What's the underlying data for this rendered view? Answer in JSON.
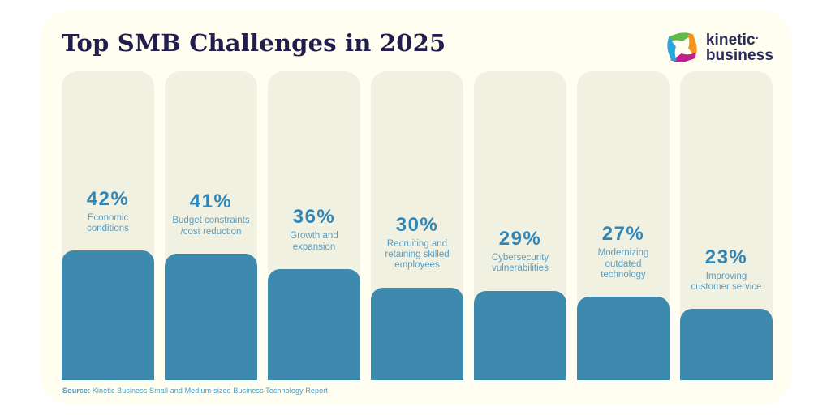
{
  "card": {
    "title": "Top SMB Challenges in 2025",
    "logo": {
      "line1": "kinetic",
      "mark": ".",
      "line2": "business"
    },
    "source": {
      "label": "Source:",
      "text": " Kinetic Business Small and Medium-sized Business Technology Report"
    }
  },
  "colors": {
    "card_bg": "#FFFEF0",
    "track_bg": "#F1F1E2",
    "bar": "#3E8AAE",
    "pct": "#3286B6",
    "label": "#5C9DC0",
    "title": "#211D4D",
    "logo_text": "#2B2A5C",
    "source": "#4D99BE",
    "logo_green": "#5FBB46",
    "logo_orange": "#F7941E",
    "logo_magenta": "#C01F8E",
    "logo_blue": "#29A8E0"
  },
  "chart_data": {
    "type": "bar",
    "title": "Top SMB Challenges in 2025",
    "orientation": "vertical",
    "grid": false,
    "legend": "none",
    "xlabel": "",
    "ylabel": "",
    "ylim": [
      0,
      100
    ],
    "value_suffix": "%",
    "categories": [
      "Economic\nconditions",
      "Budget constraints\n/cost reduction",
      "Growth and\nexpansion",
      "Recruiting and\nretaining skilled\nemployees",
      "Cybersecurity\nvulnerabilities",
      "Modernizing\noutdated\ntechnology",
      "Improving\ncustomer service"
    ],
    "values": [
      42,
      41,
      36,
      30,
      29,
      27,
      23
    ]
  }
}
